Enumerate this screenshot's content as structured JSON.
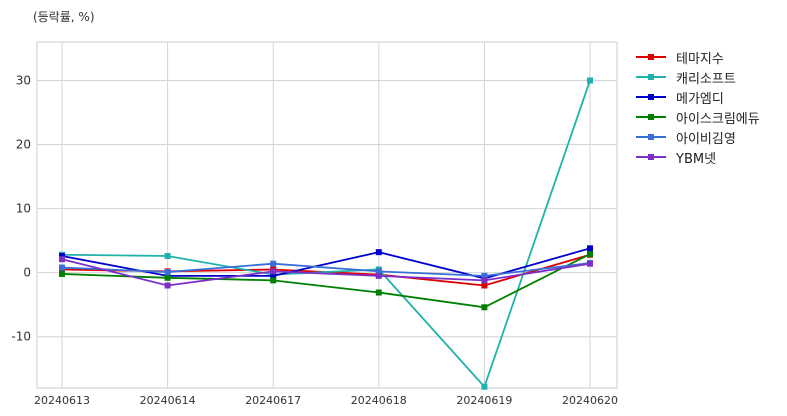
{
  "chart_data": {
    "type": "line",
    "unit_label": "(등락률, %)",
    "categories": [
      "20240613",
      "20240614",
      "20240617",
      "20240618",
      "20240619",
      "20240620"
    ],
    "ylim": [
      -18,
      36
    ],
    "yticks": [
      -10,
      0,
      10,
      20,
      30
    ],
    "grid": true,
    "legend_position": "right",
    "series": [
      {
        "name": "테마지수",
        "color": "#dd0000",
        "values": [
          0.5,
          0.2,
          0.5,
          -0.3,
          -2.0,
          2.8
        ]
      },
      {
        "name": "캐리소프트",
        "color": "#20b2aa",
        "values": [
          2.8,
          2.6,
          -0.3,
          0.5,
          -17.8,
          30.0
        ]
      },
      {
        "name": "메가엠디",
        "color": "#0000cc",
        "values": [
          2.6,
          -0.5,
          -0.5,
          3.2,
          -0.9,
          3.8
        ]
      },
      {
        "name": "아이스크림에듀",
        "color": "#007f00",
        "values": [
          -0.2,
          -0.8,
          -1.2,
          -3.1,
          -5.4,
          2.9
        ]
      },
      {
        "name": "아이비김영",
        "color": "#3a6fd8",
        "values": [
          0.8,
          0.1,
          1.4,
          0.2,
          -0.5,
          1.5
        ]
      },
      {
        "name": "YBM넷",
        "color": "#7b2fc9",
        "values": [
          2.1,
          -2.0,
          0.2,
          -0.5,
          -1.2,
          1.4
        ]
      }
    ]
  }
}
